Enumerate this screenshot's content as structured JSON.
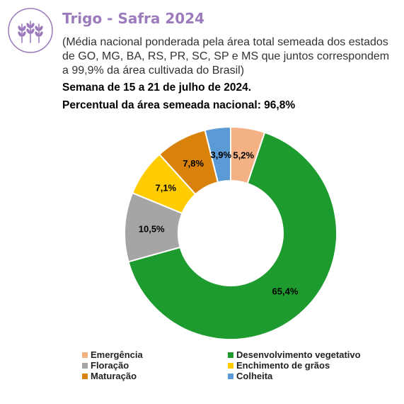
{
  "header": {
    "title": "Trigo - Safra 2024",
    "subtitle": "(Média nacional ponderada pela área total semeada dos estados de GO, MG, BA, RS, PR, SC, SP e MS que juntos correspondem a 99,9% da área cultivada do Brasil)",
    "week": "Semana de 15 a 21 de julho de 2024.",
    "area": "Percentual da área semeada nacional: 96,8%",
    "icon": "wheat-icon",
    "accent": "#9b7bbb"
  },
  "chart_data": {
    "type": "pie",
    "donut": true,
    "unit": "%",
    "series": [
      {
        "name": "Emergência",
        "value": 5.2,
        "label": "5,2%",
        "color": "#f4b183"
      },
      {
        "name": "Desenvolvimento vegetativo",
        "value": 65.4,
        "label": "65,4%",
        "color": "#1e9b2e"
      },
      {
        "name": "Floração",
        "value": 10.5,
        "label": "10,5%",
        "color": "#a5a5a5"
      },
      {
        "name": "Enchimento de grãos",
        "value": 7.1,
        "label": "7,1%",
        "color": "#ffcc00"
      },
      {
        "name": "Maturação",
        "value": 7.8,
        "label": "7,8%",
        "color": "#d9820b"
      },
      {
        "name": "Colheita",
        "value": 3.9,
        "label": "3,9%",
        "color": "#5b9bd5"
      }
    ],
    "legend_position": "bottom"
  }
}
